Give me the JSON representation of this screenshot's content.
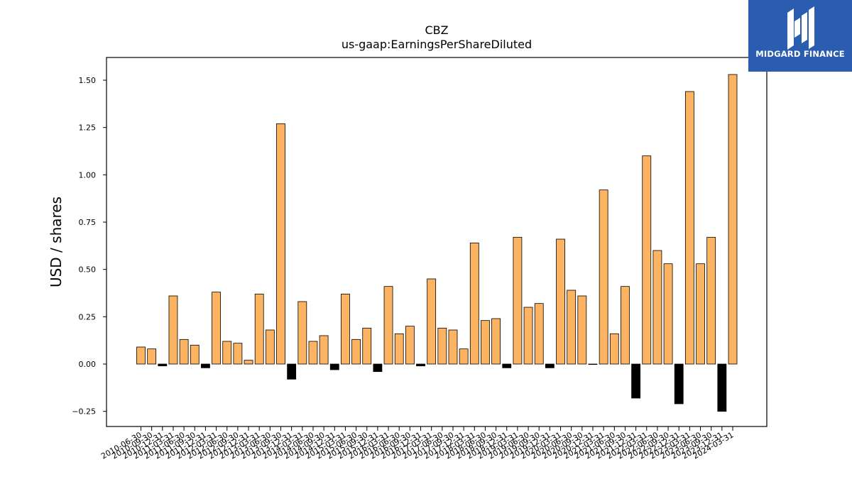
{
  "chart_data": {
    "type": "bar",
    "title": "CBZ",
    "subtitle": "us-gaap:EarningsPerShareDiluted",
    "ylabel": "USD / shares",
    "xlabel": "",
    "ylim": [
      -0.33,
      1.62
    ],
    "yticks": [
      -0.25,
      0.0,
      0.25,
      0.5,
      0.75,
      1.0,
      1.25,
      1.5
    ],
    "ytick_labels": [
      "−0.25",
      "0.00",
      "0.25",
      "0.50",
      "0.75",
      "1.00",
      "1.25",
      "1.50"
    ],
    "positive_color": "#fdb462",
    "negative_color": "#000000",
    "categories": [
      "2010-06-30",
      "2010-09-30",
      "2010-12-31",
      "2011-03-31",
      "2011-06-30",
      "2011-09-30",
      "2011-12-31",
      "2012-03-31",
      "2012-06-30",
      "2012-09-30",
      "2012-12-31",
      "2013-03-31",
      "2013-06-30",
      "2013-09-30",
      "2013-12-31",
      "2014-03-31",
      "2014-06-30",
      "2014-09-30",
      "2014-12-31",
      "2015-03-31",
      "2015-06-30",
      "2015-09-30",
      "2015-12-31",
      "2016-03-31",
      "2016-06-30",
      "2016-09-30",
      "2016-12-31",
      "2017-03-31",
      "2017-06-30",
      "2017-09-30",
      "2017-12-31",
      "2018-03-31",
      "2018-06-30",
      "2018-09-30",
      "2018-12-31",
      "2019-03-31",
      "2019-06-30",
      "2019-09-30",
      "2019-12-31",
      "2020-03-31",
      "2020-06-30",
      "2020-09-30",
      "2020-12-31",
      "2021-03-31",
      "2021-06-30",
      "2021-09-30",
      "2021-12-31",
      "2022-03-31",
      "2022-06-30",
      "2022-09-30",
      "2022-12-31",
      "2023-03-31",
      "2023-06-30",
      "2023-09-30",
      "2023-12-31",
      "2024-03-31"
    ],
    "values": [
      0.09,
      0.08,
      -0.01,
      0.36,
      0.13,
      0.1,
      -0.02,
      0.38,
      0.12,
      0.11,
      0.02,
      0.37,
      0.18,
      1.27,
      -0.08,
      0.33,
      0.12,
      0.15,
      -0.03,
      0.37,
      0.13,
      0.19,
      -0.04,
      0.41,
      0.16,
      0.2,
      -0.01,
      0.45,
      0.19,
      0.18,
      0.08,
      0.64,
      0.23,
      0.24,
      -0.02,
      0.67,
      0.3,
      0.32,
      -0.02,
      0.66,
      0.39,
      0.36,
      0.0,
      0.92,
      0.16,
      0.41,
      -0.18,
      1.1,
      0.6,
      0.53,
      -0.21,
      1.44,
      0.53,
      0.67,
      -0.25,
      1.53
    ]
  },
  "logo": {
    "text": "MIDGARD FINANCE",
    "background": "#2a5db0"
  }
}
